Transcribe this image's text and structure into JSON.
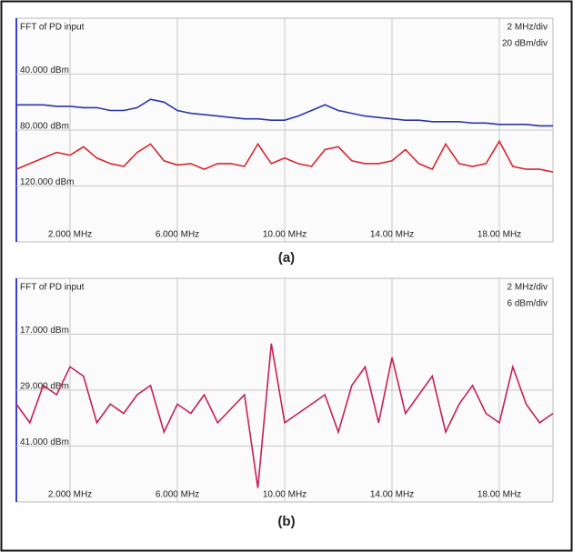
{
  "chart_data": [
    {
      "type": "line",
      "title": "FFT of PD input",
      "annotations": [
        "2 MHz/div",
        "20 dBm/div"
      ],
      "caption": "(a)",
      "x": [
        0,
        0.5,
        1,
        1.5,
        2,
        2.5,
        3,
        3.5,
        4,
        4.5,
        5,
        5.5,
        6,
        6.5,
        7,
        7.5,
        8,
        8.5,
        9,
        9.5,
        10,
        10.5,
        11,
        11.5,
        12,
        12.5,
        13,
        13.5,
        14,
        14.5,
        15,
        15.5,
        16,
        16.5,
        17,
        17.5,
        18,
        18.5,
        19,
        19.5,
        20
      ],
      "series": [
        {
          "color": "#2a35a8",
          "values": [
            62,
            62,
            62,
            63,
            63,
            64,
            64,
            66,
            66,
            64,
            58,
            60,
            66,
            68,
            69,
            70,
            71,
            72,
            72,
            73,
            73,
            70,
            66,
            62,
            66,
            68,
            70,
            71,
            72,
            73,
            73,
            74,
            74,
            74,
            75,
            75,
            76,
            76,
            76,
            77,
            77
          ]
        },
        {
          "color": "#d8262f",
          "values": [
            108,
            104,
            100,
            96,
            98,
            92,
            100,
            104,
            106,
            96,
            90,
            102,
            105,
            104,
            108,
            104,
            104,
            106,
            90,
            104,
            100,
            104,
            106,
            94,
            92,
            102,
            104,
            104,
            102,
            94,
            104,
            108,
            90,
            104,
            106,
            104,
            88,
            106,
            108,
            108,
            110
          ]
        }
      ],
      "xlim": [
        0,
        20
      ],
      "xticks": [
        {
          "value": 2,
          "label": "2.000 MHz"
        },
        {
          "value": 6,
          "label": "6.000 MHz"
        },
        {
          "value": 10,
          "label": "10.00 MHz"
        },
        {
          "value": 14,
          "label": "14.00 MHz"
        },
        {
          "value": 18,
          "label": "18.00 MHz"
        }
      ],
      "ylim": [
        160,
        0
      ],
      "yticks": [
        {
          "value": 40,
          "label": "40.000 dBm"
        },
        {
          "value": 80,
          "label": "80.000 dBm"
        },
        {
          "value": 120,
          "label": "120.000 dBm"
        }
      ],
      "grid": true
    },
    {
      "type": "line",
      "title": "FFT of PD input",
      "annotations": [
        "2 MHz/div",
        "6 dBm/div"
      ],
      "caption": "(b)",
      "x": [
        0,
        0.5,
        1,
        1.5,
        2,
        2.5,
        3,
        3.5,
        4,
        4.5,
        5,
        5.5,
        6,
        6.5,
        7,
        7.5,
        8,
        8.5,
        9,
        9.5,
        10,
        10.5,
        11,
        11.5,
        12,
        12.5,
        13,
        13.5,
        14,
        14.5,
        15,
        15.5,
        16,
        16.5,
        17,
        17.5,
        18,
        18.5,
        19,
        19.5,
        20
      ],
      "series": [
        {
          "color": "#c61f5a",
          "values": [
            32,
            36,
            28,
            30,
            24,
            26,
            36,
            32,
            34,
            30,
            28,
            38,
            32,
            34,
            30,
            36,
            33,
            30,
            50,
            19,
            36,
            34,
            32,
            30,
            38,
            28,
            24,
            36,
            22,
            34,
            30,
            26,
            38,
            32,
            28,
            34,
            36,
            24,
            32,
            36,
            34
          ]
        }
      ],
      "xlim": [
        0,
        20
      ],
      "xticks": [
        {
          "value": 2,
          "label": "2.000 MHz"
        },
        {
          "value": 6,
          "label": "6.000 MHz"
        },
        {
          "value": 10,
          "label": "10.00 MHz"
        },
        {
          "value": 14,
          "label": "14.00 MHz"
        },
        {
          "value": 18,
          "label": "18.00 MHz"
        }
      ],
      "ylim": [
        53,
        5
      ],
      "yticks": [
        {
          "value": 17,
          "label": "17.000 dBm"
        },
        {
          "value": 29,
          "label": "29.000 dBm"
        },
        {
          "value": 41,
          "label": "41.000 dBm"
        }
      ],
      "grid": true
    }
  ]
}
